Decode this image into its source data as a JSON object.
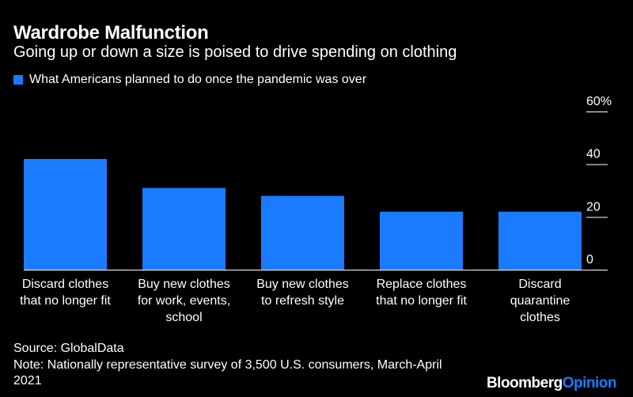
{
  "title": "Wardrobe Malfunction",
  "subtitle": "Going up or down a size is poised to drive spending on clothing",
  "legend_label": "What Americans planned to do once the pandemic was over",
  "source": "Source: GlobalData",
  "note": "Note: Nationally representative survey of 3,500 U.S. consumers, March-April 2021",
  "brand": {
    "part1": "Bloomberg",
    "part2": "Opinion"
  },
  "colors": {
    "background": "#000000",
    "bar": "#1a7bff",
    "text": "#ffffff",
    "brand_accent": "#1a7bff"
  },
  "chart_data": {
    "type": "bar",
    "categories": [
      [
        "Discard clothes",
        "that no longer fit"
      ],
      [
        "Buy new clothes",
        "for work, events,",
        "school"
      ],
      [
        "Buy new clothes",
        "to refresh style"
      ],
      [
        "Replace clothes",
        "that no longer fit"
      ],
      [
        "Discard",
        "quarantine",
        "clothes"
      ]
    ],
    "series": [
      {
        "name": "What Americans planned to do once the pandemic was over",
        "values": [
          42,
          31,
          28,
          22,
          22
        ]
      }
    ],
    "ylim": [
      0,
      60
    ],
    "yticks": [
      0,
      20,
      40,
      60
    ],
    "ytick_labels": [
      "0",
      "20",
      "40",
      "60%"
    ],
    "y_axis_position": "right",
    "grid": false
  }
}
